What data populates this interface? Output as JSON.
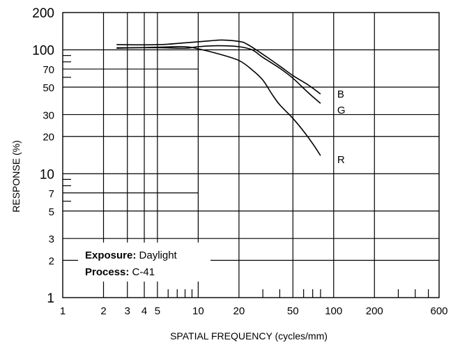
{
  "chart_data": {
    "type": "line",
    "xlabel": "SPATIAL FREQUENCY (cycles/mm)",
    "ylabel": "RESPONSE (%)",
    "x_scale": "log",
    "y_scale": "log",
    "xlim": [
      1,
      600
    ],
    "ylim": [
      1,
      200
    ],
    "x_ticks": [
      1,
      2,
      3,
      4,
      5,
      10,
      20,
      50,
      100,
      200,
      600
    ],
    "y_ticks": [
      1,
      2,
      3,
      5,
      7,
      10,
      20,
      30,
      50,
      70,
      100,
      200
    ],
    "grid": true,
    "series": [
      {
        "name": "B",
        "x": [
          2.5,
          5,
          8,
          12,
          15,
          20,
          23,
          30,
          40,
          50,
          65,
          80
        ],
        "y": [
          110,
          110,
          114,
          118,
          120,
          117,
          111,
          92,
          74,
          62,
          52,
          44
        ]
      },
      {
        "name": "G",
        "x": [
          2.5,
          5,
          8,
          10,
          14,
          20,
          25,
          30,
          40,
          50,
          65,
          80
        ],
        "y": [
          104,
          104,
          103,
          106,
          108,
          106,
          100,
          87,
          71,
          59,
          45,
          37
        ]
      },
      {
        "name": "R",
        "x": [
          2.5,
          5,
          8,
          10,
          14,
          20,
          25,
          30,
          35,
          40,
          50,
          60,
          70,
          80
        ],
        "y": [
          103,
          105,
          106,
          102,
          93,
          82,
          69,
          57,
          44,
          36,
          28,
          22,
          17.5,
          14
        ]
      }
    ],
    "annotation": {
      "exposure_label": "Exposure:",
      "exposure_value": " Daylight",
      "process_label": "Process:",
      "process_value": " C-41"
    }
  }
}
